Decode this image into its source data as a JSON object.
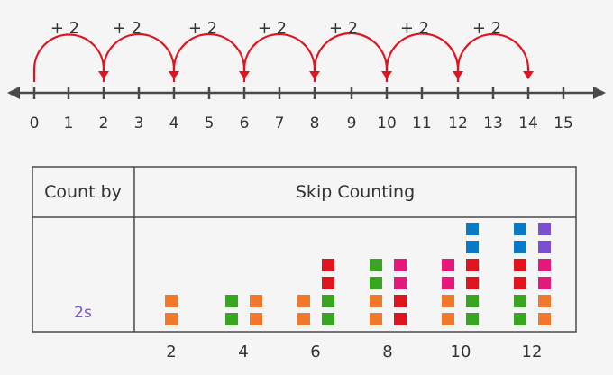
{
  "number_line": {
    "ticks": [
      "0",
      "1",
      "2",
      "3",
      "4",
      "5",
      "6",
      "7",
      "8",
      "9",
      "10",
      "11",
      "12",
      "13",
      "14",
      "15"
    ],
    "jumps": [
      {
        "from": 0,
        "to": 2,
        "label": "+ 2"
      },
      {
        "from": 2,
        "to": 4,
        "label": "+ 2"
      },
      {
        "from": 4,
        "to": 6,
        "label": "+ 2"
      },
      {
        "from": 6,
        "to": 8,
        "label": "+ 2"
      },
      {
        "from": 8,
        "to": 10,
        "label": "+ 2"
      },
      {
        "from": 10,
        "to": 12,
        "label": "+ 2"
      },
      {
        "from": 12,
        "to": 14,
        "label": "+ 2"
      }
    ]
  },
  "table": {
    "header_left": "Count by",
    "header_right": "Skip Counting",
    "row_label": "2s",
    "x_labels": [
      "2",
      "4",
      "6",
      "8",
      "10",
      "12"
    ]
  },
  "blocks": {
    "groups": [
      {
        "value": 2,
        "columns": [
          [
            "orange",
            "orange"
          ]
        ]
      },
      {
        "value": 4,
        "columns": [
          [
            "green",
            "green"
          ],
          [
            "orange",
            "orange"
          ]
        ]
      },
      {
        "value": 6,
        "columns": [
          [
            "orange",
            "orange"
          ],
          [
            "green",
            "green",
            "red",
            "red"
          ]
        ]
      },
      {
        "value": 8,
        "columns": [
          [
            "orange",
            "orange",
            "green",
            "green"
          ],
          [
            "red",
            "red",
            "pink",
            "pink"
          ]
        ]
      },
      {
        "value": 10,
        "columns": [
          [
            "orange",
            "orange",
            "pink",
            "pink"
          ],
          [
            "green",
            "green",
            "red",
            "red",
            "blue",
            "blue"
          ]
        ]
      },
      {
        "value": 12,
        "columns": [
          [
            "green",
            "green",
            "red",
            "red",
            "blue",
            "blue"
          ],
          [
            "orange",
            "orange",
            "pink",
            "pink",
            "purple",
            "purple"
          ]
        ]
      }
    ]
  },
  "colors": {
    "line": "#4a4a4a",
    "arc": "#e0141e",
    "label_purple": "#7a4fd0",
    "orange": "#f0782c",
    "green": "#3aa523",
    "red": "#e0141e",
    "pink": "#e6197a",
    "blue": "#0c79c4",
    "purple": "#7a4fd0"
  }
}
